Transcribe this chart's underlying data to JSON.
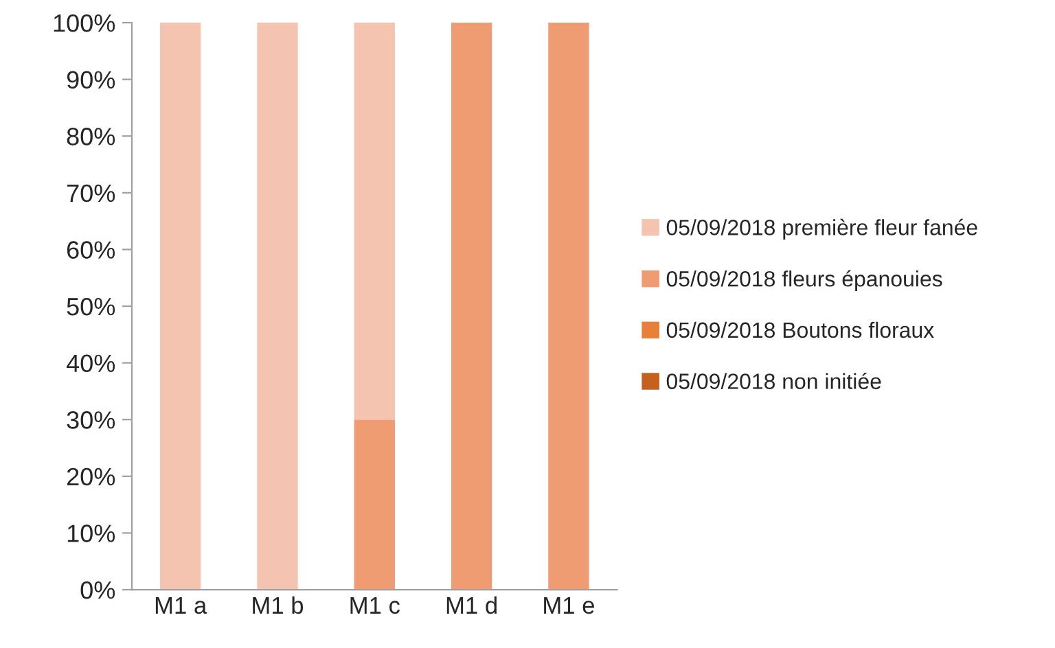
{
  "chart_data": {
    "type": "bar",
    "stacked": true,
    "categories": [
      "M1 a",
      "M1 b",
      "M1 c",
      "M1 d",
      "M1 e"
    ],
    "series": [
      {
        "name": "05/09/2018 non initiée",
        "color": "#c5601f",
        "values": [
          0,
          0,
          0,
          0,
          0
        ]
      },
      {
        "name": "05/09/2018 Boutons floraux",
        "color": "#e8803a",
        "values": [
          0,
          0,
          0,
          0,
          0
        ]
      },
      {
        "name": "05/09/2018 fleurs épanouies",
        "color": "#f09c73",
        "values": [
          0,
          0,
          30,
          100,
          100
        ]
      },
      {
        "name": "05/09/2018 première fleur fanée",
        "color": "#f5c4b1",
        "values": [
          100,
          100,
          70,
          0,
          0
        ]
      }
    ],
    "ylim": [
      0,
      100
    ],
    "yticks": [
      {
        "value": 0,
        "label": "0%"
      },
      {
        "value": 10,
        "label": "10%"
      },
      {
        "value": 20,
        "label": "20%"
      },
      {
        "value": 30,
        "label": "30%"
      },
      {
        "value": 40,
        "label": "40%"
      },
      {
        "value": 50,
        "label": "50%"
      },
      {
        "value": 60,
        "label": "60%"
      },
      {
        "value": 70,
        "label": "70%"
      },
      {
        "value": 80,
        "label": "80%"
      },
      {
        "value": 90,
        "label": "90%"
      },
      {
        "value": 100,
        "label": "100%"
      }
    ],
    "grid": false,
    "legend": "right"
  }
}
